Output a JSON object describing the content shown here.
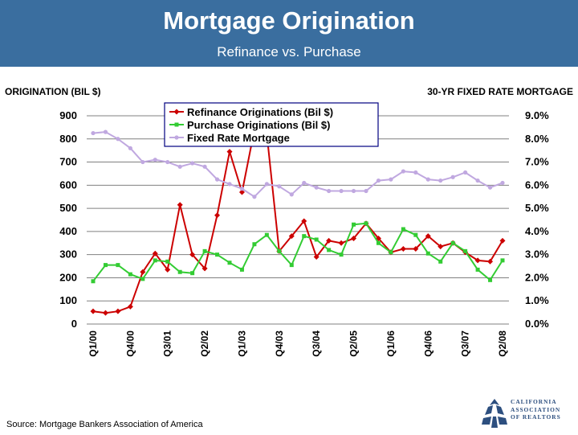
{
  "header": {
    "title": "Mortgage Origination",
    "subtitle": "Refinance vs. Purchase"
  },
  "left_axis_title": "ORIGINATION (BIL $)",
  "right_axis_title": "30-YR FIXED RATE MORTGAGE",
  "source": "Source: Mortgage Bankers Association of America",
  "logo": {
    "lines": [
      "CALIFORNIA",
      "ASSOCIATION",
      "OF REALTORS"
    ],
    "brand_color": "#2d4f7f"
  },
  "colors": {
    "header_bg": "#3a6e9f",
    "refinance": "#cc0000",
    "purchase": "#33cc33",
    "rate": "#c0a8e0"
  },
  "chart_data": {
    "type": "line",
    "x": [
      "Q1/00",
      "Q2/00",
      "Q3/00",
      "Q4/00",
      "Q1/01",
      "Q2/01",
      "Q3/01",
      "Q4/01",
      "Q1/02",
      "Q2/02",
      "Q3/02",
      "Q4/02",
      "Q1/03",
      "Q2/03",
      "Q3/03",
      "Q4/03",
      "Q1/04",
      "Q2/04",
      "Q3/04",
      "Q4/04",
      "Q1/05",
      "Q2/05",
      "Q3/05",
      "Q4/05",
      "Q1/06",
      "Q2/06",
      "Q3/06",
      "Q4/06",
      "Q1/07",
      "Q2/07",
      "Q3/07",
      "Q4/07",
      "Q1/08",
      "Q2/08"
    ],
    "x_tick_labels": [
      "Q1/00",
      "Q4/00",
      "Q3/01",
      "Q2/02",
      "Q1/03",
      "Q4/03",
      "Q3/04",
      "Q2/05",
      "Q1/06",
      "Q4/06",
      "Q3/07",
      "Q2/08"
    ],
    "x_tick_indices": [
      0,
      3,
      6,
      9,
      12,
      15,
      18,
      21,
      24,
      27,
      30,
      33
    ],
    "left_axis": {
      "ylim": [
        0,
        900
      ],
      "ticks": [
        "0",
        "100",
        "200",
        "300",
        "400",
        "500",
        "600",
        "700",
        "800",
        "900"
      ]
    },
    "right_axis": {
      "ylim": [
        0,
        9
      ],
      "ticks": [
        "0.0%",
        "1.0%",
        "2.0%",
        "3.0%",
        "4.0%",
        "5.0%",
        "6.0%",
        "7.0%",
        "8.0%",
        "9.0%"
      ]
    },
    "grid": "horizontal",
    "legend_position": "top-center",
    "series": [
      {
        "name": "Refinance Originations (Bil $)",
        "axis": "left",
        "color": "#cc0000",
        "marker": "diamond",
        "values": [
          55,
          48,
          55,
          75,
          225,
          305,
          235,
          515,
          300,
          240,
          470,
          745,
          570,
          840,
          820,
          315,
          380,
          445,
          290,
          360,
          350,
          370,
          435,
          370,
          310,
          325,
          325,
          380,
          335,
          350,
          310,
          275,
          270,
          360
        ]
      },
      {
        "name": "Purchase Originations (Bil $)",
        "axis": "left",
        "color": "#33cc33",
        "marker": "square",
        "values": [
          185,
          255,
          255,
          215,
          195,
          275,
          270,
          225,
          220,
          315,
          300,
          265,
          235,
          345,
          385,
          315,
          255,
          380,
          365,
          320,
          300,
          430,
          435,
          350,
          310,
          410,
          385,
          305,
          270,
          350,
          315,
          235,
          190,
          275
        ]
      },
      {
        "name": "Fixed Rate Mortgage",
        "axis": "right",
        "color": "#c0a8e0",
        "marker": "circle",
        "values": [
          8.25,
          8.3,
          8.0,
          7.6,
          7.0,
          7.1,
          7.0,
          6.8,
          6.95,
          6.8,
          6.25,
          6.05,
          5.85,
          5.5,
          6.05,
          5.95,
          5.6,
          6.1,
          5.9,
          5.75,
          5.75,
          5.75,
          5.75,
          6.2,
          6.25,
          6.6,
          6.55,
          6.25,
          6.2,
          6.35,
          6.55,
          6.2,
          5.9,
          6.1
        ]
      }
    ]
  }
}
